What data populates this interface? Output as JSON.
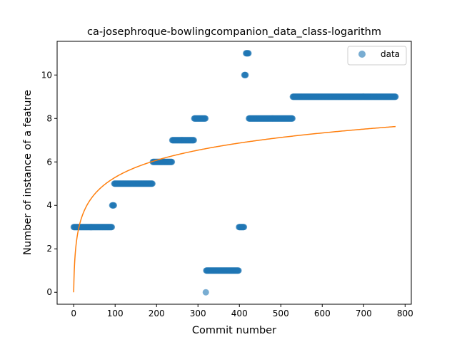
{
  "chart_data": {
    "type": "scatter",
    "title": "ca-josephroque-bowlingcompanion_data_class-logarithm",
    "xlabel": "Commit number",
    "ylabel": "Number of instance of a feature",
    "xlim": [
      -40,
      815
    ],
    "ylim": [
      -0.55,
      11.55
    ],
    "x_ticks": [
      0,
      100,
      200,
      300,
      400,
      500,
      600,
      700,
      800
    ],
    "y_ticks": [
      0,
      2,
      4,
      6,
      8,
      10
    ],
    "grid": false,
    "legend": {
      "placement": "top-right",
      "entries": [
        "data"
      ]
    },
    "colors": {
      "data": "#1f77b4",
      "fit": "#ff7f0e"
    },
    "series": [
      {
        "name": "data",
        "kind": "scatter",
        "segments": [
          {
            "x_start": 0,
            "x_end": 92,
            "y": 3
          },
          {
            "x_start": 93,
            "x_end": 97,
            "y": 4
          },
          {
            "x_start": 98,
            "x_end": 190,
            "y": 5
          },
          {
            "x_start": 191,
            "x_end": 237,
            "y": 6
          },
          {
            "x_start": 238,
            "x_end": 290,
            "y": 7
          },
          {
            "x_start": 291,
            "x_end": 318,
            "y": 8
          },
          {
            "x_start": 319,
            "x_end": 319,
            "y": 0
          },
          {
            "x_start": 320,
            "x_end": 398,
            "y": 1
          },
          {
            "x_start": 399,
            "x_end": 411,
            "y": 3
          },
          {
            "x_start": 412,
            "x_end": 415,
            "y": 10
          },
          {
            "x_start": 416,
            "x_end": 422,
            "y": 11
          },
          {
            "x_start": 423,
            "x_end": 528,
            "y": 8
          },
          {
            "x_start": 529,
            "x_end": 777,
            "y": 9
          }
        ]
      },
      {
        "name": "",
        "kind": "line",
        "model": "a*ln(x+1)",
        "a": 1.146,
        "x_range": [
          0,
          777
        ]
      }
    ]
  }
}
